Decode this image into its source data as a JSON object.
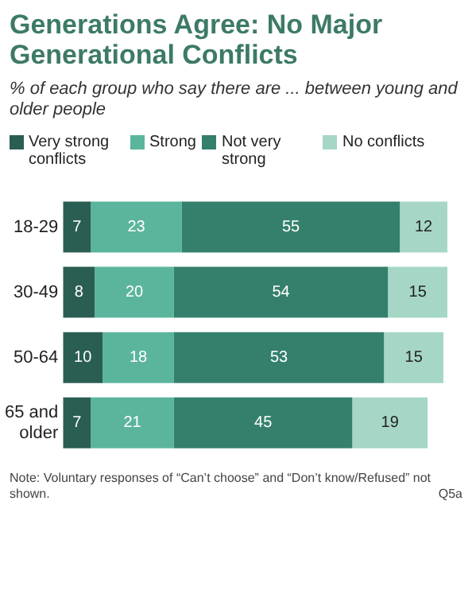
{
  "chart_data": {
    "type": "bar",
    "orientation": "horizontal",
    "stacked": true,
    "title": "Generations Agree: No Major Generational Conflicts",
    "subtitle": "% of each group who say there are ... between young and older people",
    "categories": [
      "18-29",
      "30-49",
      "50-64",
      "65 and older"
    ],
    "series": [
      {
        "name": "Very strong conflicts",
        "color": "#2a5e52",
        "values": [
          7,
          8,
          10,
          7
        ]
      },
      {
        "name": "Strong",
        "color": "#5bb59c",
        "values": [
          23,
          20,
          18,
          21
        ]
      },
      {
        "name": "Not very strong",
        "color": "#34806c",
        "values": [
          55,
          54,
          53,
          45
        ]
      },
      {
        "name": "No conflicts",
        "color": "#a6d7c6",
        "values": [
          12,
          15,
          15,
          19
        ]
      }
    ],
    "data_labels": true,
    "legend": "top",
    "grid": false,
    "tick_labels": "y",
    "annotations": [
      "Note:  Voluntary responses of “Can’t choose” and “Don’t know/Refused” not shown.",
      "Q5a"
    ]
  }
}
